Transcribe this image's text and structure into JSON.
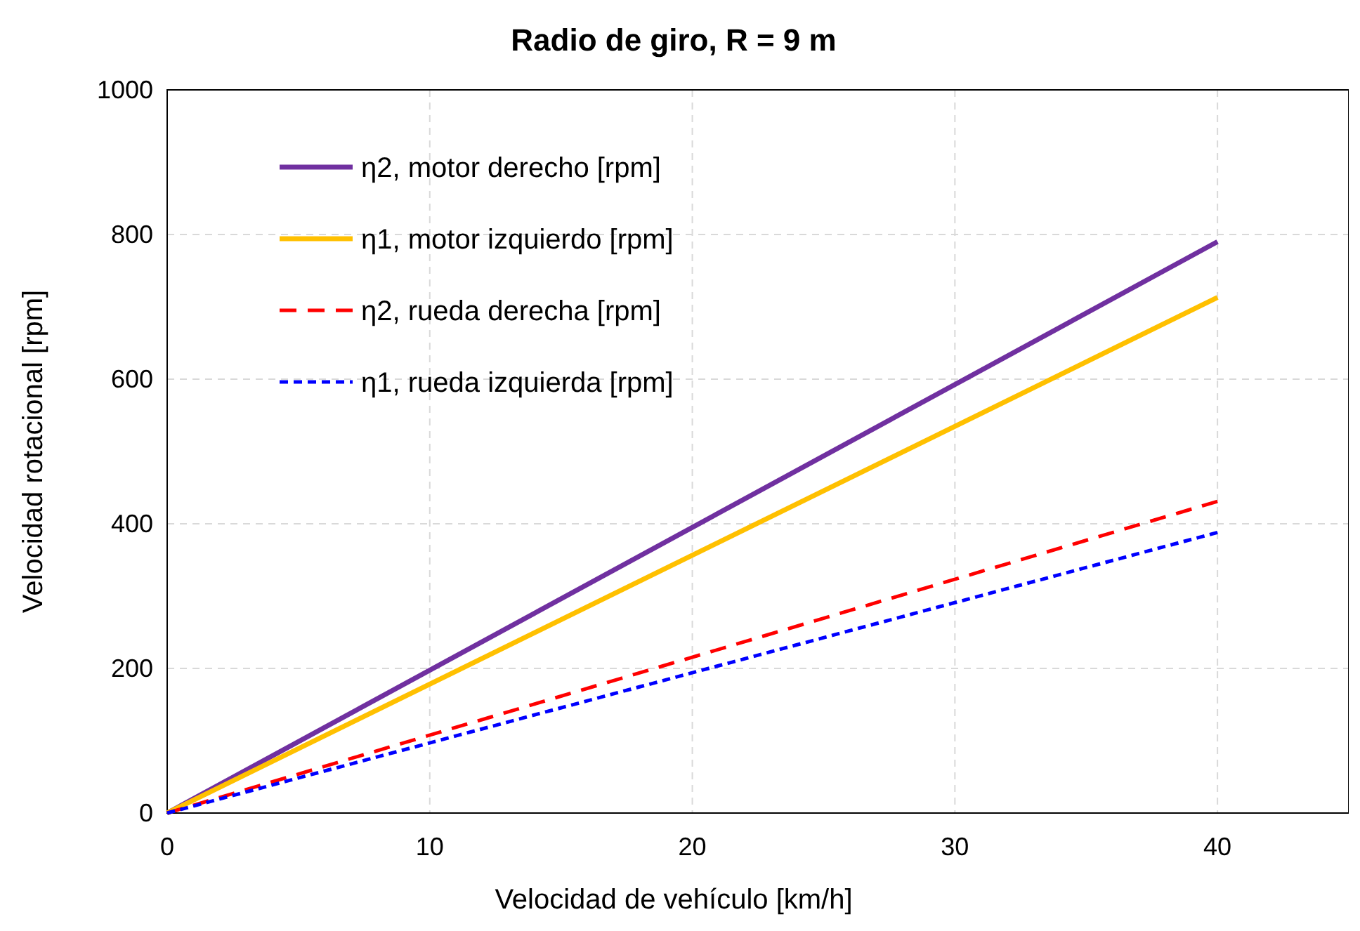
{
  "chart_data": {
    "type": "line",
    "title": "Radio de giro, R = 9 m",
    "xlabel": "Velocidad de vehículo [km/h]",
    "ylabel": "Velocidad rotacional [rpm]",
    "x": [
      0,
      40
    ],
    "xlim": [
      0,
      45
    ],
    "xticks": [
      0,
      10,
      20,
      30,
      40
    ],
    "ylim": [
      0,
      1000
    ],
    "yticks": [
      0,
      200,
      400,
      600,
      800,
      1000
    ],
    "grid": true,
    "legend": "top left",
    "series": [
      {
        "name": "η2, motor derecho [rpm]",
        "color": "#7030a0",
        "values": [
          0,
          790
        ],
        "line_style": "solid"
      },
      {
        "name": "η1, motor izquierdo [rpm]",
        "color": "#ffc000",
        "values": [
          0,
          713
        ],
        "line_style": "solid"
      },
      {
        "name": "η2, rueda derecha [rpm]",
        "color": "#ff0000",
        "values": [
          0,
          431
        ],
        "line_style": "dashed"
      },
      {
        "name": "η1, rueda izquierda [rpm]",
        "color": "#0000ff",
        "values": [
          0,
          388
        ],
        "line_style": "dotted"
      }
    ]
  }
}
